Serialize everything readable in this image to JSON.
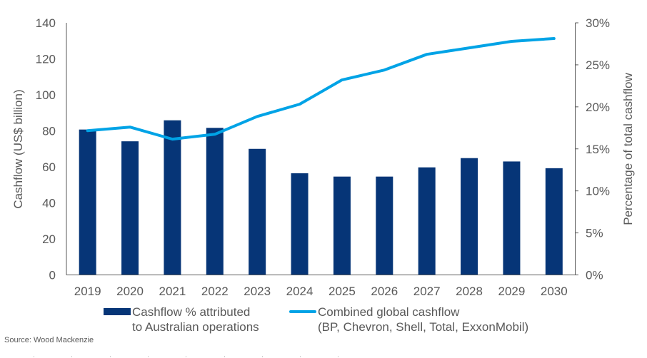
{
  "chart_data": {
    "type": "bar+line",
    "title": "",
    "categories": [
      "2019",
      "2020",
      "2021",
      "2022",
      "2023",
      "2024",
      "2025",
      "2026",
      "2027",
      "2028",
      "2029",
      "2030"
    ],
    "series": [
      {
        "name": "Cashflow % attributed to Australian operations",
        "kind": "bar",
        "axis": "right",
        "color": "#063577",
        "values": [
          17.3,
          15.9,
          18.4,
          17.5,
          15.0,
          12.1,
          11.7,
          11.7,
          12.8,
          13.9,
          13.5,
          12.7
        ]
      },
      {
        "name": "Combined global cashflow (BP, Chevron, Shell, Total, ExxonMobil)",
        "kind": "line",
        "axis": "left",
        "color": "#00A3E6",
        "values": [
          80.1,
          82.1,
          75.4,
          78.1,
          88.0,
          94.8,
          108.3,
          113.8,
          122.5,
          126.1,
          129.7,
          131.3
        ]
      }
    ],
    "left_axis": {
      "label": "Cashflow (US$ billion)",
      "range": [
        0,
        140
      ],
      "ticks": [
        "0",
        "20",
        "40",
        "60",
        "80",
        "100",
        "120",
        "140"
      ]
    },
    "right_axis": {
      "label": "Percentage of total cashflow",
      "range": [
        0,
        30
      ],
      "ticks": [
        "0%",
        "5%",
        "10%",
        "15%",
        "20%",
        "25%",
        "30%"
      ]
    },
    "grid": false,
    "legend_position": "bottom"
  },
  "legend": {
    "bar": {
      "line1": "Cashflow % attributed",
      "line2": "to Australian operations"
    },
    "line": {
      "line1": "Combined global cashflow",
      "line2": "(BP, Chevron, Shell, Total, ExxonMobil)"
    }
  },
  "source": "Source: Wood Mackenzie"
}
